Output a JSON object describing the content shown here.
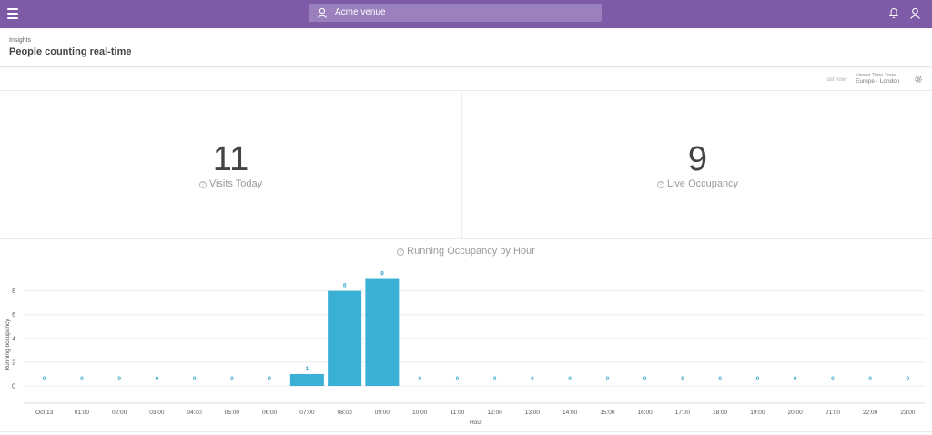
{
  "topbar": {
    "venue_name": "Acme venue",
    "accent_color": "#7d5ba6"
  },
  "header": {
    "breadcrumb": "Insights",
    "title": "People counting real-time"
  },
  "toolbar": {
    "updated": "just now",
    "timezone_label": "Viewer Time Zone",
    "timezone_value": "Europe - London"
  },
  "kpis": {
    "visits_today": {
      "value": "11",
      "label": "Visits Today"
    },
    "live_occupancy": {
      "value": "9",
      "label": "Live Occupancy"
    }
  },
  "chart_data": {
    "type": "bar",
    "title": "Running Occupancy by Hour",
    "xlabel": "Hour",
    "ylabel": "Running occupancy",
    "categories": [
      "Oct 13",
      "01:00",
      "02:00",
      "03:00",
      "04:00",
      "05:00",
      "06:00",
      "07:00",
      "08:00",
      "09:00",
      "10:00",
      "11:00",
      "12:00",
      "13:00",
      "14:00",
      "15:00",
      "16:00",
      "17:00",
      "18:00",
      "19:00",
      "20:00",
      "21:00",
      "22:00",
      "23:00"
    ],
    "values": [
      0,
      0,
      0,
      0,
      0,
      0,
      0,
      1,
      8,
      9,
      0,
      0,
      0,
      0,
      0,
      0,
      0,
      0,
      0,
      0,
      0,
      0,
      0,
      0
    ],
    "yticks": [
      0,
      2,
      4,
      6,
      8
    ],
    "ylim": [
      0,
      9
    ],
    "grid": true,
    "bar_color": "#3bb0d6",
    "label_color": "#3aa6c9"
  }
}
